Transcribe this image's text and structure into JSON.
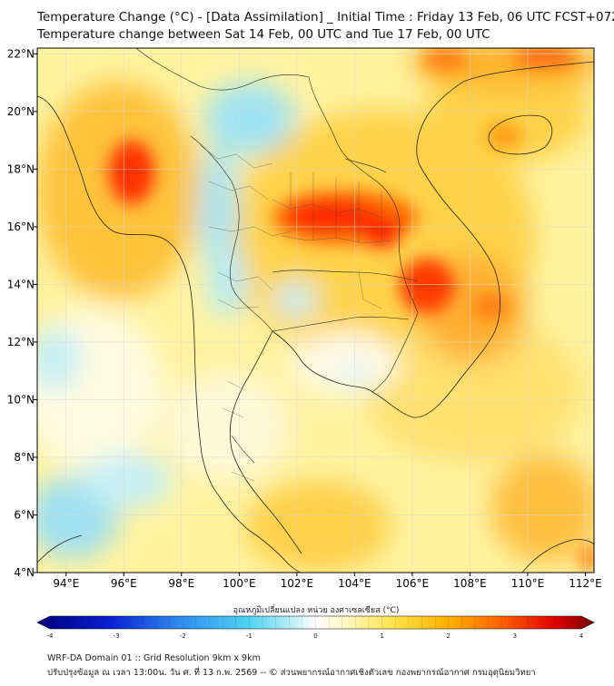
{
  "header": {
    "title_line1": "Temperature Change (°C) - [Data Assimilation] _ Initial Time : Friday 13 Feb, 06 UTC FCST+072",
    "title_line2": "Temperature change between Sat 14 Feb, 00 UTC and Tue 17 Feb, 00 UTC"
  },
  "map": {
    "lon_labels": [
      "94°E",
      "96°E",
      "98°E",
      "100°E",
      "102°E",
      "104°E",
      "106°E",
      "108°E",
      "110°E",
      "112°E"
    ],
    "lat_labels": [
      "22°N",
      "20°N",
      "18°N",
      "16°N",
      "14°N",
      "12°N",
      "10°N",
      "8°N",
      "6°N",
      "4°N"
    ],
    "lon_range": [
      93,
      112.3
    ],
    "lat_range": [
      4,
      22.2
    ]
  },
  "colorbar": {
    "label": "อุณหภูมิเปลี่ยนแปลง หน่วย องศาเซลเซียส (°C)",
    "ticks": [
      "-4",
      "-3",
      "-2",
      "-1",
      "0",
      "1",
      "2",
      "3",
      "4"
    ],
    "range": [
      -4,
      4
    ]
  },
  "footer": {
    "line1": "WRF-DA Domain 01 :: Grid Resolution 9km x 9km",
    "line2": "ปรับปรุงข้อมูล ณ เวลา 13:00น. วัน ศ. ที่ 13 ก.พ. 2569 -- © ส่วนพยากรณ์อากาศเชิงตัวเลข กองพยากรณ์อากาศ กรมอุตุนิยมวิทยา"
  }
}
